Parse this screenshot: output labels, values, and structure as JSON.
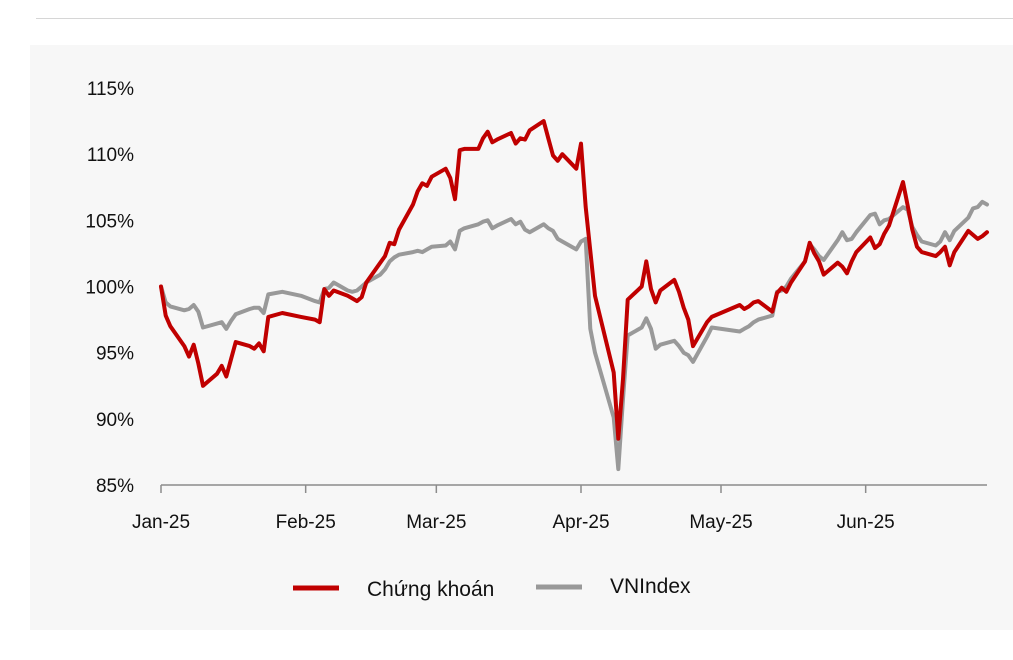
{
  "chart_data": {
    "type": "line",
    "title": "",
    "xlabel": "",
    "ylabel": "",
    "ylim": [
      85,
      115
    ],
    "y_ticks": [
      "115%",
      "110%",
      "105%",
      "100%",
      "95%",
      "90%",
      "85%"
    ],
    "y_tick_values": [
      115,
      110,
      105,
      100,
      95,
      90,
      85
    ],
    "x_tick_labels": [
      "Jan-25",
      "Feb-25",
      "Mar-25",
      "Apr-25",
      "May-25",
      "Jun-25"
    ],
    "x_tick_dates": [
      "2025-01-01",
      "2025-02-01",
      "2025-03-01",
      "2025-04-01",
      "2025-05-01",
      "2025-06-01"
    ],
    "grid": false,
    "legend_position": "bottom",
    "series": [
      {
        "name": "Chứng khoán",
        "color": "#c00000",
        "points": [
          [
            "2025-01-01",
            100.0
          ],
          [
            "2025-01-02",
            97.8
          ],
          [
            "2025-01-03",
            97.0
          ],
          [
            "2025-01-06",
            95.5
          ],
          [
            "2025-01-07",
            94.7
          ],
          [
            "2025-01-08",
            95.6
          ],
          [
            "2025-01-09",
            94.2
          ],
          [
            "2025-01-10",
            92.5
          ],
          [
            "2025-01-13",
            93.4
          ],
          [
            "2025-01-14",
            94.0
          ],
          [
            "2025-01-15",
            93.2
          ],
          [
            "2025-01-16",
            94.5
          ],
          [
            "2025-01-17",
            95.8
          ],
          [
            "2025-01-20",
            95.5
          ],
          [
            "2025-01-21",
            95.3
          ],
          [
            "2025-01-22",
            95.7
          ],
          [
            "2025-01-23",
            95.1
          ],
          [
            "2025-01-24",
            97.7
          ],
          [
            "2025-01-27",
            98.0
          ],
          [
            "2025-01-31",
            97.7
          ],
          [
            "2025-02-03",
            97.5
          ],
          [
            "2025-02-04",
            97.3
          ],
          [
            "2025-02-05",
            99.8
          ],
          [
            "2025-02-06",
            99.3
          ],
          [
            "2025-02-07",
            99.7
          ],
          [
            "2025-02-10",
            99.3
          ],
          [
            "2025-02-11",
            99.1
          ],
          [
            "2025-02-12",
            98.9
          ],
          [
            "2025-02-13",
            99.2
          ],
          [
            "2025-02-14",
            100.3
          ],
          [
            "2025-02-17",
            101.8
          ],
          [
            "2025-02-18",
            102.3
          ],
          [
            "2025-02-19",
            103.3
          ],
          [
            "2025-02-20",
            103.2
          ],
          [
            "2025-02-21",
            104.3
          ],
          [
            "2025-02-24",
            106.2
          ],
          [
            "2025-02-25",
            107.2
          ],
          [
            "2025-02-26",
            107.8
          ],
          [
            "2025-02-27",
            107.6
          ],
          [
            "2025-02-28",
            108.3
          ],
          [
            "2025-03-03",
            108.9
          ],
          [
            "2025-03-04",
            108.2
          ],
          [
            "2025-03-05",
            106.6
          ],
          [
            "2025-03-06",
            110.3
          ],
          [
            "2025-03-07",
            110.4
          ],
          [
            "2025-03-10",
            110.4
          ],
          [
            "2025-03-11",
            111.2
          ],
          [
            "2025-03-12",
            111.7
          ],
          [
            "2025-03-13",
            110.9
          ],
          [
            "2025-03-14",
            111.1
          ],
          [
            "2025-03-17",
            111.6
          ],
          [
            "2025-03-18",
            110.8
          ],
          [
            "2025-03-19",
            111.2
          ],
          [
            "2025-03-20",
            111.1
          ],
          [
            "2025-03-21",
            111.8
          ],
          [
            "2025-03-24",
            112.5
          ],
          [
            "2025-03-25",
            111.2
          ],
          [
            "2025-03-26",
            109.9
          ],
          [
            "2025-03-27",
            109.5
          ],
          [
            "2025-03-28",
            110.0
          ],
          [
            "2025-03-31",
            108.9
          ],
          [
            "2025-04-01",
            110.8
          ],
          [
            "2025-04-02",
            106.0
          ],
          [
            "2025-04-03",
            102.7
          ],
          [
            "2025-04-04",
            99.3
          ],
          [
            "2025-04-08",
            93.5
          ],
          [
            "2025-04-09",
            88.5
          ],
          [
            "2025-04-10",
            93.0
          ],
          [
            "2025-04-11",
            99.0
          ],
          [
            "2025-04-14",
            100.0
          ],
          [
            "2025-04-15",
            101.9
          ],
          [
            "2025-04-16",
            99.8
          ],
          [
            "2025-04-17",
            98.8
          ],
          [
            "2025-04-18",
            99.7
          ],
          [
            "2025-04-21",
            100.5
          ],
          [
            "2025-04-22",
            99.6
          ],
          [
            "2025-04-23",
            98.4
          ],
          [
            "2025-04-24",
            97.5
          ],
          [
            "2025-04-25",
            95.5
          ],
          [
            "2025-04-28",
            97.3
          ],
          [
            "2025-04-29",
            97.7
          ],
          [
            "2025-05-05",
            98.6
          ],
          [
            "2025-05-06",
            98.3
          ],
          [
            "2025-05-07",
            98.5
          ],
          [
            "2025-05-08",
            98.8
          ],
          [
            "2025-05-09",
            98.9
          ],
          [
            "2025-05-12",
            98.1
          ],
          [
            "2025-05-13",
            99.5
          ],
          [
            "2025-05-14",
            99.9
          ],
          [
            "2025-05-15",
            99.6
          ],
          [
            "2025-05-16",
            100.3
          ],
          [
            "2025-05-19",
            101.9
          ],
          [
            "2025-05-20",
            103.3
          ],
          [
            "2025-05-21",
            102.5
          ],
          [
            "2025-05-22",
            101.9
          ],
          [
            "2025-05-23",
            100.9
          ],
          [
            "2025-05-26",
            101.8
          ],
          [
            "2025-05-27",
            101.5
          ],
          [
            "2025-05-28",
            101.0
          ],
          [
            "2025-05-29",
            101.9
          ],
          [
            "2025-05-30",
            102.6
          ],
          [
            "2025-06-02",
            103.7
          ],
          [
            "2025-06-03",
            102.9
          ],
          [
            "2025-06-04",
            103.2
          ],
          [
            "2025-06-05",
            104.0
          ],
          [
            "2025-06-06",
            104.6
          ],
          [
            "2025-06-09",
            107.9
          ],
          [
            "2025-06-10",
            106.1
          ],
          [
            "2025-06-11",
            104.3
          ],
          [
            "2025-06-12",
            103.0
          ],
          [
            "2025-06-13",
            102.6
          ],
          [
            "2025-06-16",
            102.3
          ],
          [
            "2025-06-17",
            102.6
          ],
          [
            "2025-06-18",
            103.0
          ],
          [
            "2025-06-19",
            101.6
          ],
          [
            "2025-06-20",
            102.6
          ],
          [
            "2025-06-23",
            104.2
          ],
          [
            "2025-06-24",
            103.9
          ],
          [
            "2025-06-25",
            103.6
          ],
          [
            "2025-06-26",
            103.8
          ],
          [
            "2025-06-27",
            104.1
          ]
        ]
      },
      {
        "name": "VNIndex",
        "color": "#999999",
        "points": [
          [
            "2025-01-01",
            100.0
          ],
          [
            "2025-01-02",
            98.8
          ],
          [
            "2025-01-03",
            98.5
          ],
          [
            "2025-01-06",
            98.2
          ],
          [
            "2025-01-07",
            98.3
          ],
          [
            "2025-01-08",
            98.6
          ],
          [
            "2025-01-09",
            98.1
          ],
          [
            "2025-01-10",
            96.9
          ],
          [
            "2025-01-13",
            97.2
          ],
          [
            "2025-01-14",
            97.3
          ],
          [
            "2025-01-15",
            96.8
          ],
          [
            "2025-01-16",
            97.4
          ],
          [
            "2025-01-17",
            97.9
          ],
          [
            "2025-01-20",
            98.3
          ],
          [
            "2025-01-21",
            98.4
          ],
          [
            "2025-01-22",
            98.4
          ],
          [
            "2025-01-23",
            98.0
          ],
          [
            "2025-01-24",
            99.4
          ],
          [
            "2025-01-27",
            99.6
          ],
          [
            "2025-01-31",
            99.3
          ],
          [
            "2025-02-03",
            98.9
          ],
          [
            "2025-02-04",
            98.8
          ],
          [
            "2025-02-05",
            99.8
          ],
          [
            "2025-02-06",
            99.9
          ],
          [
            "2025-02-07",
            100.3
          ],
          [
            "2025-02-10",
            99.7
          ],
          [
            "2025-02-11",
            99.6
          ],
          [
            "2025-02-12",
            99.7
          ],
          [
            "2025-02-13",
            100.0
          ],
          [
            "2025-02-14",
            100.3
          ],
          [
            "2025-02-17",
            100.9
          ],
          [
            "2025-02-18",
            101.3
          ],
          [
            "2025-02-19",
            101.9
          ],
          [
            "2025-02-20",
            102.2
          ],
          [
            "2025-02-21",
            102.4
          ],
          [
            "2025-02-24",
            102.6
          ],
          [
            "2025-02-25",
            102.7
          ],
          [
            "2025-02-26",
            102.6
          ],
          [
            "2025-02-27",
            102.8
          ],
          [
            "2025-02-28",
            103.0
          ],
          [
            "2025-03-03",
            103.1
          ],
          [
            "2025-03-04",
            103.4
          ],
          [
            "2025-03-05",
            102.8
          ],
          [
            "2025-03-06",
            104.2
          ],
          [
            "2025-03-07",
            104.4
          ],
          [
            "2025-03-10",
            104.7
          ],
          [
            "2025-03-11",
            104.9
          ],
          [
            "2025-03-12",
            105.0
          ],
          [
            "2025-03-13",
            104.4
          ],
          [
            "2025-03-14",
            104.6
          ],
          [
            "2025-03-17",
            105.1
          ],
          [
            "2025-03-18",
            104.7
          ],
          [
            "2025-03-19",
            104.9
          ],
          [
            "2025-03-20",
            104.3
          ],
          [
            "2025-03-21",
            104.1
          ],
          [
            "2025-03-24",
            104.7
          ],
          [
            "2025-03-25",
            104.4
          ],
          [
            "2025-03-26",
            104.2
          ],
          [
            "2025-03-27",
            103.6
          ],
          [
            "2025-03-28",
            103.4
          ],
          [
            "2025-03-31",
            102.8
          ],
          [
            "2025-04-01",
            103.4
          ],
          [
            "2025-04-02",
            103.6
          ],
          [
            "2025-04-03",
            96.8
          ],
          [
            "2025-04-04",
            95.0
          ],
          [
            "2025-04-08",
            90.1
          ],
          [
            "2025-04-09",
            86.2
          ],
          [
            "2025-04-10",
            91.5
          ],
          [
            "2025-04-11",
            96.3
          ],
          [
            "2025-04-14",
            96.9
          ],
          [
            "2025-04-15",
            97.6
          ],
          [
            "2025-04-16",
            96.8
          ],
          [
            "2025-04-17",
            95.3
          ],
          [
            "2025-04-18",
            95.6
          ],
          [
            "2025-04-21",
            95.9
          ],
          [
            "2025-04-22",
            95.5
          ],
          [
            "2025-04-23",
            95.0
          ],
          [
            "2025-04-24",
            94.8
          ],
          [
            "2025-04-25",
            94.3
          ],
          [
            "2025-04-28",
            96.2
          ],
          [
            "2025-04-29",
            96.9
          ],
          [
            "2025-05-05",
            96.6
          ],
          [
            "2025-05-06",
            96.8
          ],
          [
            "2025-05-07",
            97.0
          ],
          [
            "2025-05-08",
            97.3
          ],
          [
            "2025-05-09",
            97.5
          ],
          [
            "2025-05-12",
            97.8
          ],
          [
            "2025-05-13",
            99.6
          ],
          [
            "2025-05-14",
            99.7
          ],
          [
            "2025-05-15",
            100.0
          ],
          [
            "2025-05-16",
            100.6
          ],
          [
            "2025-05-19",
            101.9
          ],
          [
            "2025-05-20",
            103.2
          ],
          [
            "2025-05-21",
            102.8
          ],
          [
            "2025-05-22",
            102.3
          ],
          [
            "2025-05-23",
            102.0
          ],
          [
            "2025-05-26",
            103.5
          ],
          [
            "2025-05-27",
            104.1
          ],
          [
            "2025-05-28",
            103.5
          ],
          [
            "2025-05-29",
            103.6
          ],
          [
            "2025-05-30",
            104.1
          ],
          [
            "2025-06-02",
            105.4
          ],
          [
            "2025-06-03",
            105.5
          ],
          [
            "2025-06-04",
            104.7
          ],
          [
            "2025-06-05",
            105.0
          ],
          [
            "2025-06-06",
            105.1
          ],
          [
            "2025-06-09",
            106.0
          ],
          [
            "2025-06-10",
            105.8
          ],
          [
            "2025-06-11",
            104.5
          ],
          [
            "2025-06-12",
            103.9
          ],
          [
            "2025-06-13",
            103.4
          ],
          [
            "2025-06-16",
            103.1
          ],
          [
            "2025-06-17",
            103.4
          ],
          [
            "2025-06-18",
            104.1
          ],
          [
            "2025-06-19",
            103.5
          ],
          [
            "2025-06-20",
            104.2
          ],
          [
            "2025-06-23",
            105.2
          ],
          [
            "2025-06-24",
            105.9
          ],
          [
            "2025-06-25",
            106.0
          ],
          [
            "2025-06-26",
            106.4
          ],
          [
            "2025-06-27",
            106.2
          ]
        ]
      }
    ]
  }
}
